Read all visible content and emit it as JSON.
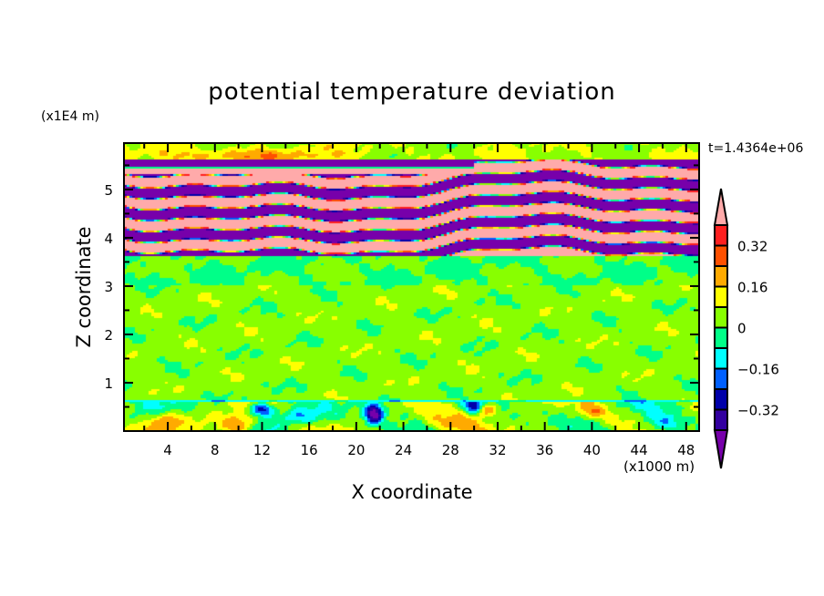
{
  "chart_data": {
    "type": "heatmap",
    "title": "potential temperature deviation",
    "xlabel": "X coordinate",
    "ylabel": "Z coordinate",
    "x_unit_label": "(x1000 m)",
    "y_unit_label": "(x1E4 m)",
    "time_label": "t=1.4364e+06",
    "xlim": [
      0.28,
      49.1
    ],
    "ylim": [
      0,
      5.96
    ],
    "x_ticks": [
      4,
      8,
      12,
      16,
      20,
      24,
      28,
      32,
      36,
      40,
      44,
      48
    ],
    "y_ticks": [
      1,
      2,
      3,
      4,
      5
    ],
    "grid": false,
    "colorbar": {
      "levels": [
        -0.4,
        -0.32,
        -0.24,
        -0.16,
        -0.08,
        0,
        0.08,
        0.16,
        0.24,
        0.32,
        0.4
      ],
      "tick_labels": [
        "0.32",
        "0.16",
        "0",
        "-0.16",
        "-0.32"
      ],
      "tick_values": [
        0.32,
        0.16,
        0,
        -0.16,
        -0.32
      ],
      "colors": [
        "#7700aa",
        "#3300a0",
        "#0000aa",
        "#0060ff",
        "#00ffff",
        "#00ff88",
        "#88ff00",
        "#ffff00",
        "#ffaa00",
        "#ff5000",
        "#ff2020",
        "#ffaaaa"
      ],
      "extend": "both",
      "placement": "right"
    },
    "features": [
      {
        "region": "z 0-0.6",
        "description_values": "mixed -0.4 to 0.3 near surface"
      },
      {
        "region": "z 0.6-3.6",
        "description_values": "mostly 0 to 0.08 with -0.08 to 0 patches"
      },
      {
        "region": "z 3.6-5.6",
        "description_values": "alternating bands above 0.4 and below -0.4"
      },
      {
        "region": "z 5.6-6",
        "description_values": "0 to 0.16"
      }
    ]
  }
}
